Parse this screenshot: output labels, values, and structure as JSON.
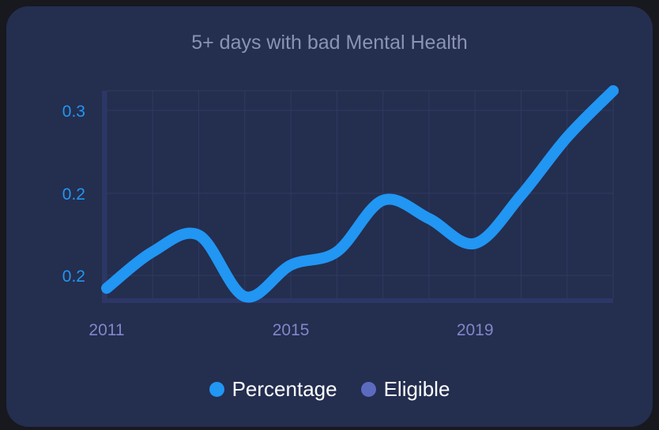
{
  "chart_data": {
    "type": "line",
    "title": "5+ days with bad Mental Health",
    "x": [
      2011,
      2012,
      2013,
      2014,
      2015,
      2016,
      2017,
      2018,
      2019,
      2020,
      2021,
      2022
    ],
    "x_tick_labels": [
      "2011",
      "2015",
      "2019"
    ],
    "y_tick_labels": [
      "0.3",
      "0.2",
      "0.2"
    ],
    "ylim": [
      0.175,
      0.3
    ],
    "series": [
      {
        "name": "Percentage",
        "color": "#2196f3",
        "values": [
          0.181,
          0.203,
          0.213,
          0.176,
          0.195,
          0.203,
          0.234,
          0.223,
          0.208,
          0.237,
          0.272,
          0.3
        ]
      }
    ],
    "legend": [
      {
        "label": "Percentage",
        "color": "#2196f3"
      },
      {
        "label": "Eligible",
        "color": "#5c6bc0"
      }
    ],
    "legend_position": "bottom",
    "grid": true
  }
}
